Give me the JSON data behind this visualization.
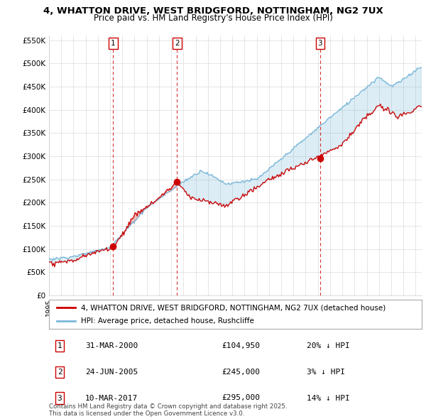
{
  "title": "4, WHATTON DRIVE, WEST BRIDGFORD, NOTTINGHAM, NG2 7UX",
  "subtitle": "Price paid vs. HM Land Registry's House Price Index (HPI)",
  "legend_label_red": "4, WHATTON DRIVE, WEST BRIDGFORD, NOTTINGHAM, NG2 7UX (detached house)",
  "legend_label_blue": "HPI: Average price, detached house, Rushcliffe",
  "footer": "Contains HM Land Registry data © Crown copyright and database right 2025.\nThis data is licensed under the Open Government Licence v3.0.",
  "transactions": [
    {
      "num": 1,
      "date": "31-MAR-2000",
      "price": 104950,
      "hpi_note": "20% ↓ HPI",
      "x": 2000.25
    },
    {
      "num": 2,
      "date": "24-JUN-2005",
      "price": 245000,
      "hpi_note": "3% ↓ HPI",
      "x": 2005.48
    },
    {
      "num": 3,
      "date": "10-MAR-2017",
      "price": 295000,
      "hpi_note": "14% ↓ HPI",
      "x": 2017.19
    }
  ],
  "red_color": "#cc0000",
  "blue_color": "#7ab8d9",
  "blue_fill": "#c5dff0",
  "vline_color": "#cc0000",
  "ylim": [
    0,
    560000
  ],
  "yticks": [
    0,
    50000,
    100000,
    150000,
    200000,
    250000,
    300000,
    350000,
    400000,
    450000,
    500000,
    550000
  ],
  "background_color": "#ffffff",
  "grid_color": "#e0e0e0"
}
